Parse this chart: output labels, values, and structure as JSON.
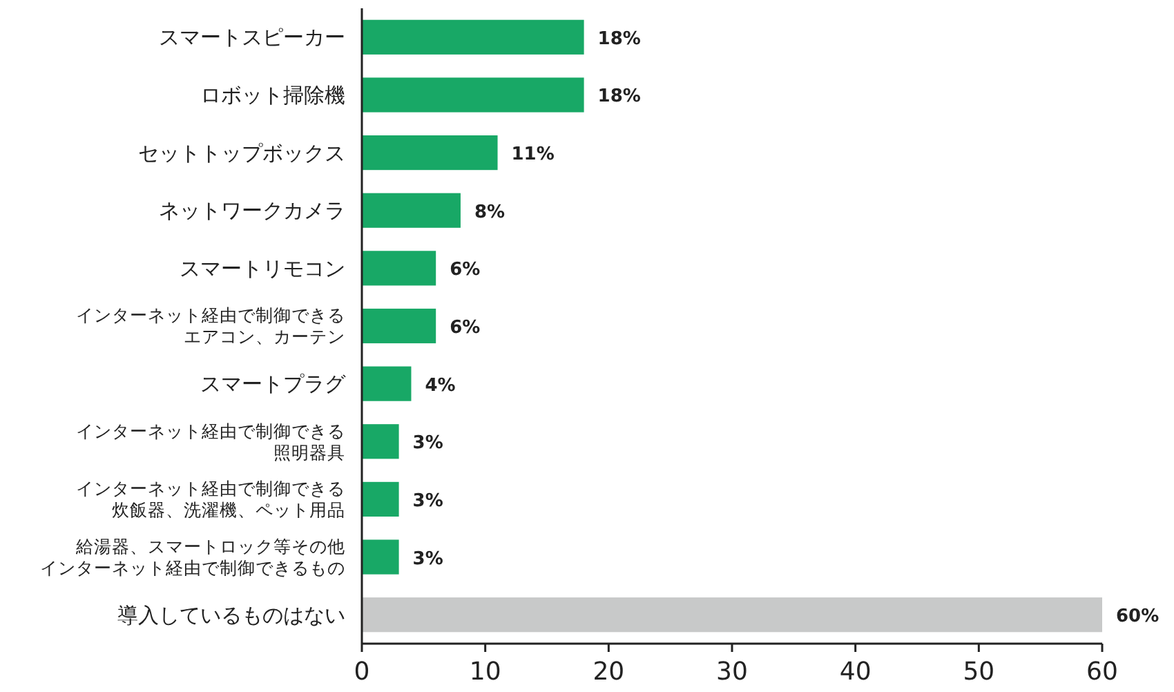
{
  "chart_data": {
    "type": "bar",
    "orientation": "horizontal",
    "categories": [
      "スマートスピーカー",
      "ロボット掃除機",
      "セットトップボックス",
      "ネットワークカメラ",
      "スマートリモコン",
      "インターネット経由で制御できるエアコン、カーテン",
      "スマートプラグ",
      "インターネット経由で制御できる照明器具",
      "インターネット経由で制御できる炊飯器、洗濯機、ペット用品",
      "給湯器、スマートロック等その他インターネット経由で制御できるもの",
      "導入しているものはない"
    ],
    "values": [
      18,
      18,
      11,
      8,
      6,
      6,
      4,
      3,
      3,
      3,
      60
    ],
    "colors": [
      "#18a866",
      "#18a866",
      "#18a866",
      "#18a866",
      "#18a866",
      "#18a866",
      "#18a866",
      "#18a866",
      "#18a866",
      "#18a866",
      "#c8c9c9"
    ],
    "value_labels": [
      "18%",
      "18%",
      "11%",
      "8%",
      "6%",
      "6%",
      "4%",
      "3%",
      "3%",
      "3%",
      "60%"
    ],
    "xlim": [
      0,
      60
    ],
    "xticks": [
      0,
      10,
      20,
      30,
      40,
      50,
      60
    ],
    "grid": false
  }
}
